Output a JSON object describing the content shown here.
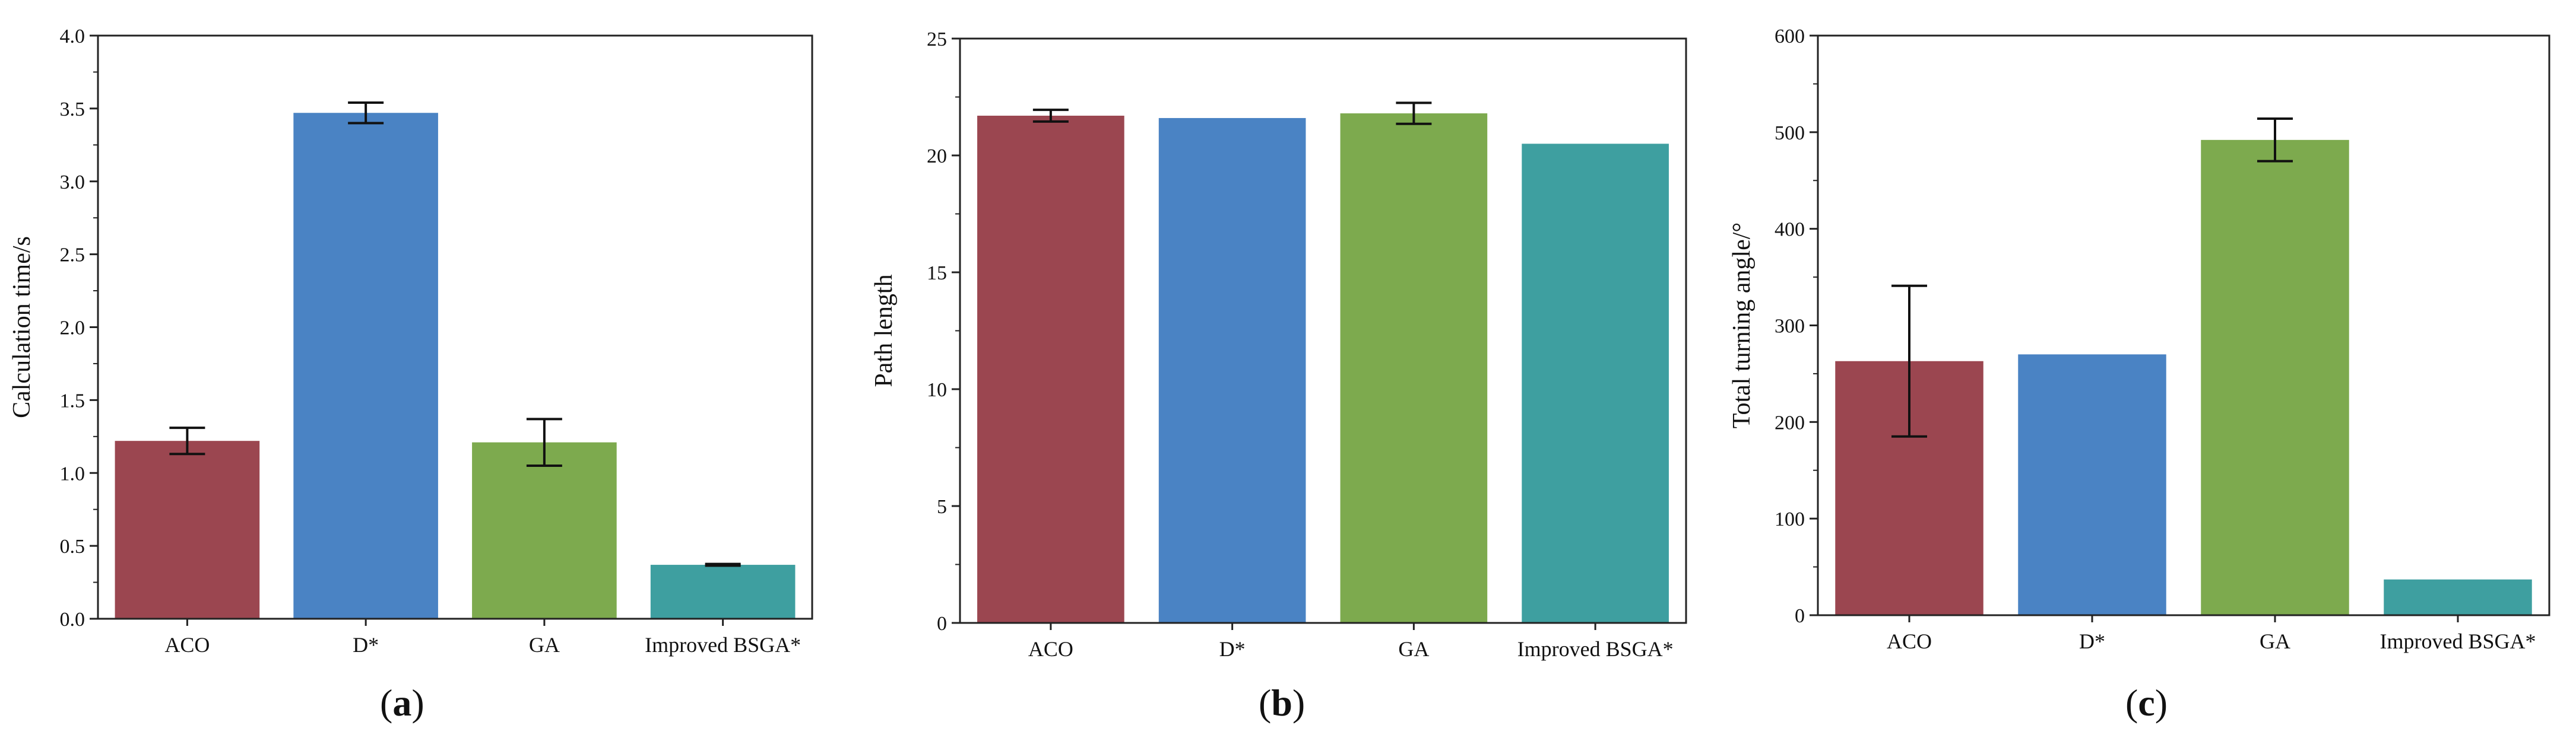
{
  "colors": {
    "series": [
      "#9B4650",
      "#4A83C4",
      "#7DAA4E",
      "#3E9FA0"
    ],
    "axis": "#222222",
    "errorbar": "#111111"
  },
  "chart_data": [
    {
      "type": "bar",
      "panel_label": "a",
      "categories": [
        "ACO",
        "D*",
        "GA",
        "Improved BSGA*"
      ],
      "values": [
        1.22,
        3.47,
        1.21,
        0.37
      ],
      "errors": [
        0.09,
        0.07,
        0.16,
        0.006
      ],
      "ylabel": "Calculation time/s",
      "xlabel": "",
      "ylim": [
        0,
        4.0
      ],
      "yticks": [
        0,
        0.5,
        1.0,
        1.5,
        2.0,
        2.5,
        3.0,
        3.5,
        4.0
      ],
      "ytick_labels": [
        "0.0",
        "0.5",
        "1.0",
        "1.5",
        "2.0",
        "2.5",
        "3.0",
        "3.5",
        "4.0"
      ]
    },
    {
      "type": "bar",
      "panel_label": "b",
      "categories": [
        "ACO",
        "D*",
        "GA",
        "Improved BSGA*"
      ],
      "values": [
        21.7,
        21.6,
        21.8,
        20.5
      ],
      "errors": [
        0.25,
        0,
        0.45,
        0
      ],
      "ylabel": "Path length",
      "xlabel": "",
      "ylim": [
        0,
        25
      ],
      "yticks": [
        0,
        5,
        10,
        15,
        20,
        25
      ],
      "ytick_labels": [
        "0",
        "5",
        "10",
        "15",
        "20",
        "25"
      ]
    },
    {
      "type": "bar",
      "panel_label": "c",
      "categories": [
        "ACO",
        "D*",
        "GA",
        "Improved BSGA*"
      ],
      "values": [
        263,
        270,
        492,
        37
      ],
      "errors": [
        78,
        0,
        22,
        0
      ],
      "ylabel": "Total turning angle/°",
      "xlabel": "",
      "ylim": [
        0,
        600
      ],
      "yticks": [
        0,
        100,
        200,
        300,
        400,
        500,
        600
      ],
      "ytick_labels": [
        "0",
        "100",
        "200",
        "300",
        "400",
        "500",
        "600"
      ]
    }
  ]
}
